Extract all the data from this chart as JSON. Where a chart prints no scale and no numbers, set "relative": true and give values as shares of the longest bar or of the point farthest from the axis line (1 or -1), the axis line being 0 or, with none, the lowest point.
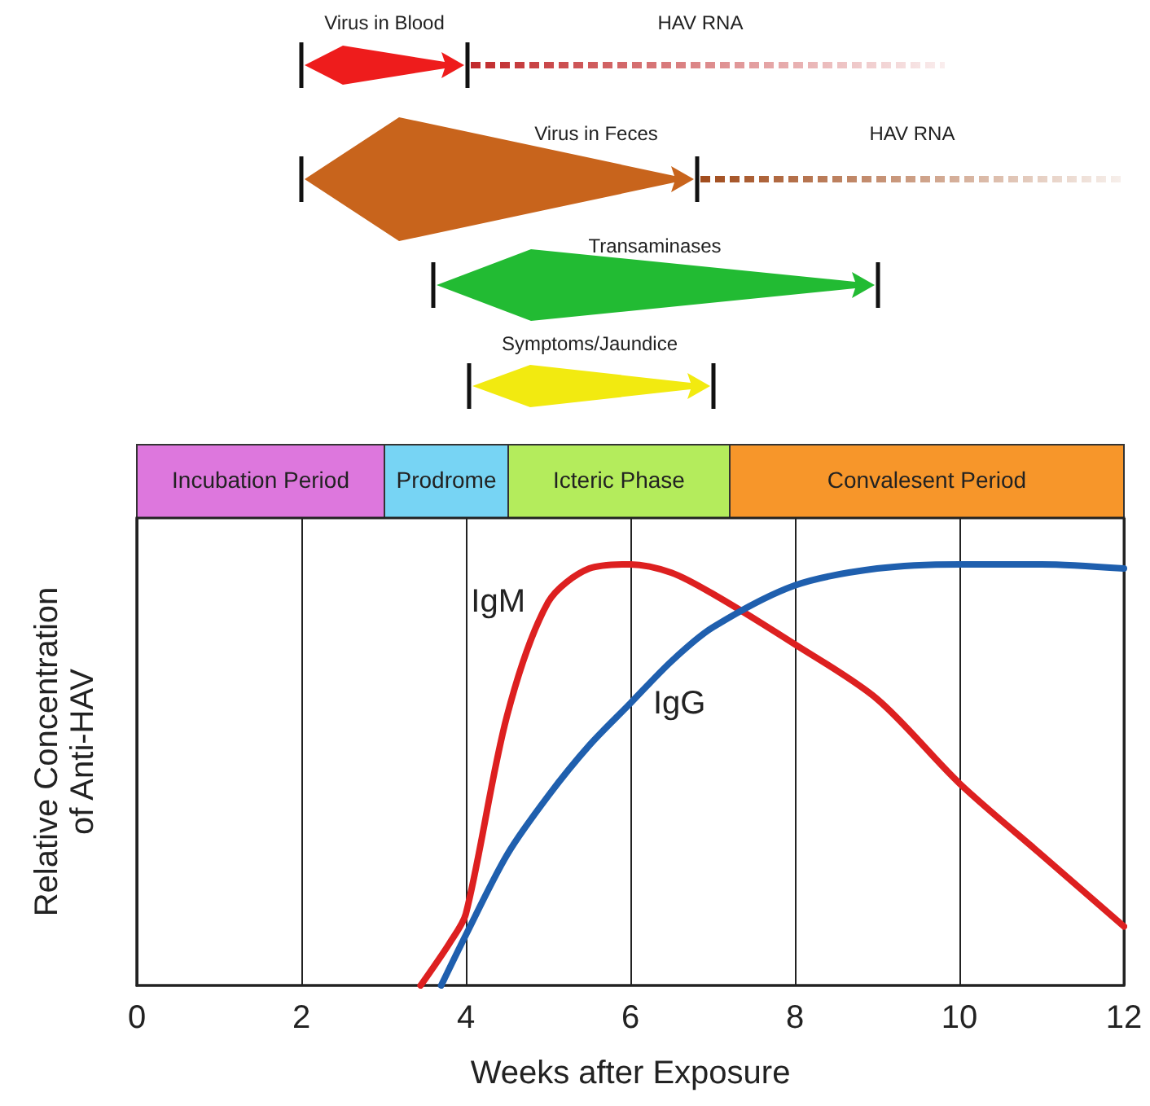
{
  "chart_data": [
    {
      "type": "other",
      "annotations": [
        "Virus in Blood",
        "HAV RNA",
        "Virus in Feces",
        "HAV RNA",
        "Transaminases",
        "Symptoms/Jaundice",
        "Incubation Period",
        "Prodrome",
        "Icteric Phase",
        "Convalesent Period"
      ]
    },
    {
      "type": "line",
      "relative": true,
      "xlabel": "Weeks after Exposure",
      "ylabel": "Relative Concentration of Anti-HAV",
      "xlim": [
        0,
        12
      ],
      "xticks": [
        0,
        2,
        4,
        6,
        8,
        10,
        12
      ],
      "grid": "x",
      "marker": "none",
      "line_style": "solid",
      "series": [
        {
          "name": "IgM",
          "color": "#dd2020",
          "x": [
            3.45,
            3.8,
            4,
            4.5,
            5,
            5.5,
            6,
            6.5,
            7,
            8,
            9,
            10,
            11,
            12
          ],
          "values": [
            0,
            0.1,
            0.17,
            0.64,
            0.91,
            0.99,
            1,
            0.98,
            0.93,
            0.81,
            0.68,
            0.48,
            0.31,
            0.14
          ]
        },
        {
          "name": "IgG",
          "color": "#1f5fae",
          "x": [
            3.7,
            4,
            4.5,
            5,
            5.5,
            6,
            6.5,
            7,
            8,
            9,
            10,
            11,
            12
          ],
          "values": [
            0,
            0.12,
            0.31,
            0.45,
            0.57,
            0.67,
            0.77,
            0.85,
            0.95,
            0.99,
            1,
            1,
            0.99
          ]
        }
      ]
    }
  ]
}
